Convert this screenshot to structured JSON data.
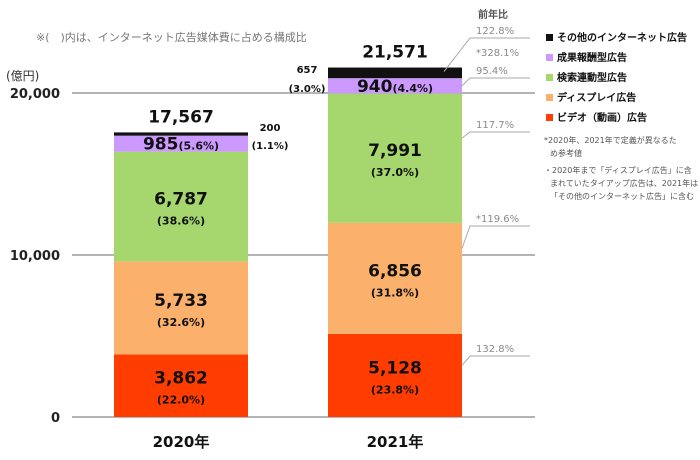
{
  "note": "※(　)内は、インターネット広告媒体費に占める構成比",
  "unit": "(億円)",
  "yoy_header": "前年比",
  "chart_data": {
    "type": "bar",
    "stacked": true,
    "categories": [
      "2020年",
      "2021年"
    ],
    "ylim": [
      0,
      20000
    ],
    "yticks": [
      {
        "value": 0,
        "label": "0"
      },
      {
        "value": 10000,
        "label": "10,000"
      },
      {
        "value": 20000,
        "label": "20,000"
      }
    ],
    "grid": true,
    "totals": [
      "17,567",
      "21,571"
    ],
    "series": [
      {
        "name": "ビデオ（動画）広告",
        "color": "#ff3d00",
        "values": [
          3862,
          5128
        ],
        "labels": [
          "3,862",
          "5,128"
        ],
        "shares": [
          "(22.0%)",
          "(23.8%)"
        ],
        "yoy": "132.8%"
      },
      {
        "name": "ディスプレイ広告",
        "color": "#fbb06b",
        "values": [
          5733,
          6856
        ],
        "labels": [
          "5,733",
          "6,856"
        ],
        "shares": [
          "(32.6%)",
          "(31.8%)"
        ],
        "yoy": "*119.6%"
      },
      {
        "name": "検索連動型広告",
        "color": "#a6d66e",
        "values": [
          6787,
          7991
        ],
        "labels": [
          "6,787",
          "7,991"
        ],
        "shares": [
          "(38.6%)",
          "(37.0%)"
        ],
        "yoy": "117.7%"
      },
      {
        "name": "成果報酬型広告",
        "color": "#cc99ff",
        "values": [
          985,
          940
        ],
        "labels": [
          "985",
          "940"
        ],
        "shares": [
          "(5.6%)",
          "(4.4%)"
        ],
        "yoy": "95.4%"
      },
      {
        "name": "その他のインターネット広告",
        "color": "#111111",
        "values": [
          200,
          657
        ],
        "labels": [
          "200",
          "657"
        ],
        "shares": [
          "(1.1%)",
          "(3.0%)"
        ],
        "yoy_lines": [
          "122.8%",
          "*328.1%"
        ]
      }
    ],
    "legend_position": "right"
  },
  "footnotes": [
    [
      "*2020年、2021年で定義が異なるた",
      "め参考値"
    ],
    [
      "・2020年まで「ディスプレイ広告」に含",
      "まれていたタイアップ広告は、2021年は",
      "「その他のインターネット広告」に含む"
    ]
  ]
}
